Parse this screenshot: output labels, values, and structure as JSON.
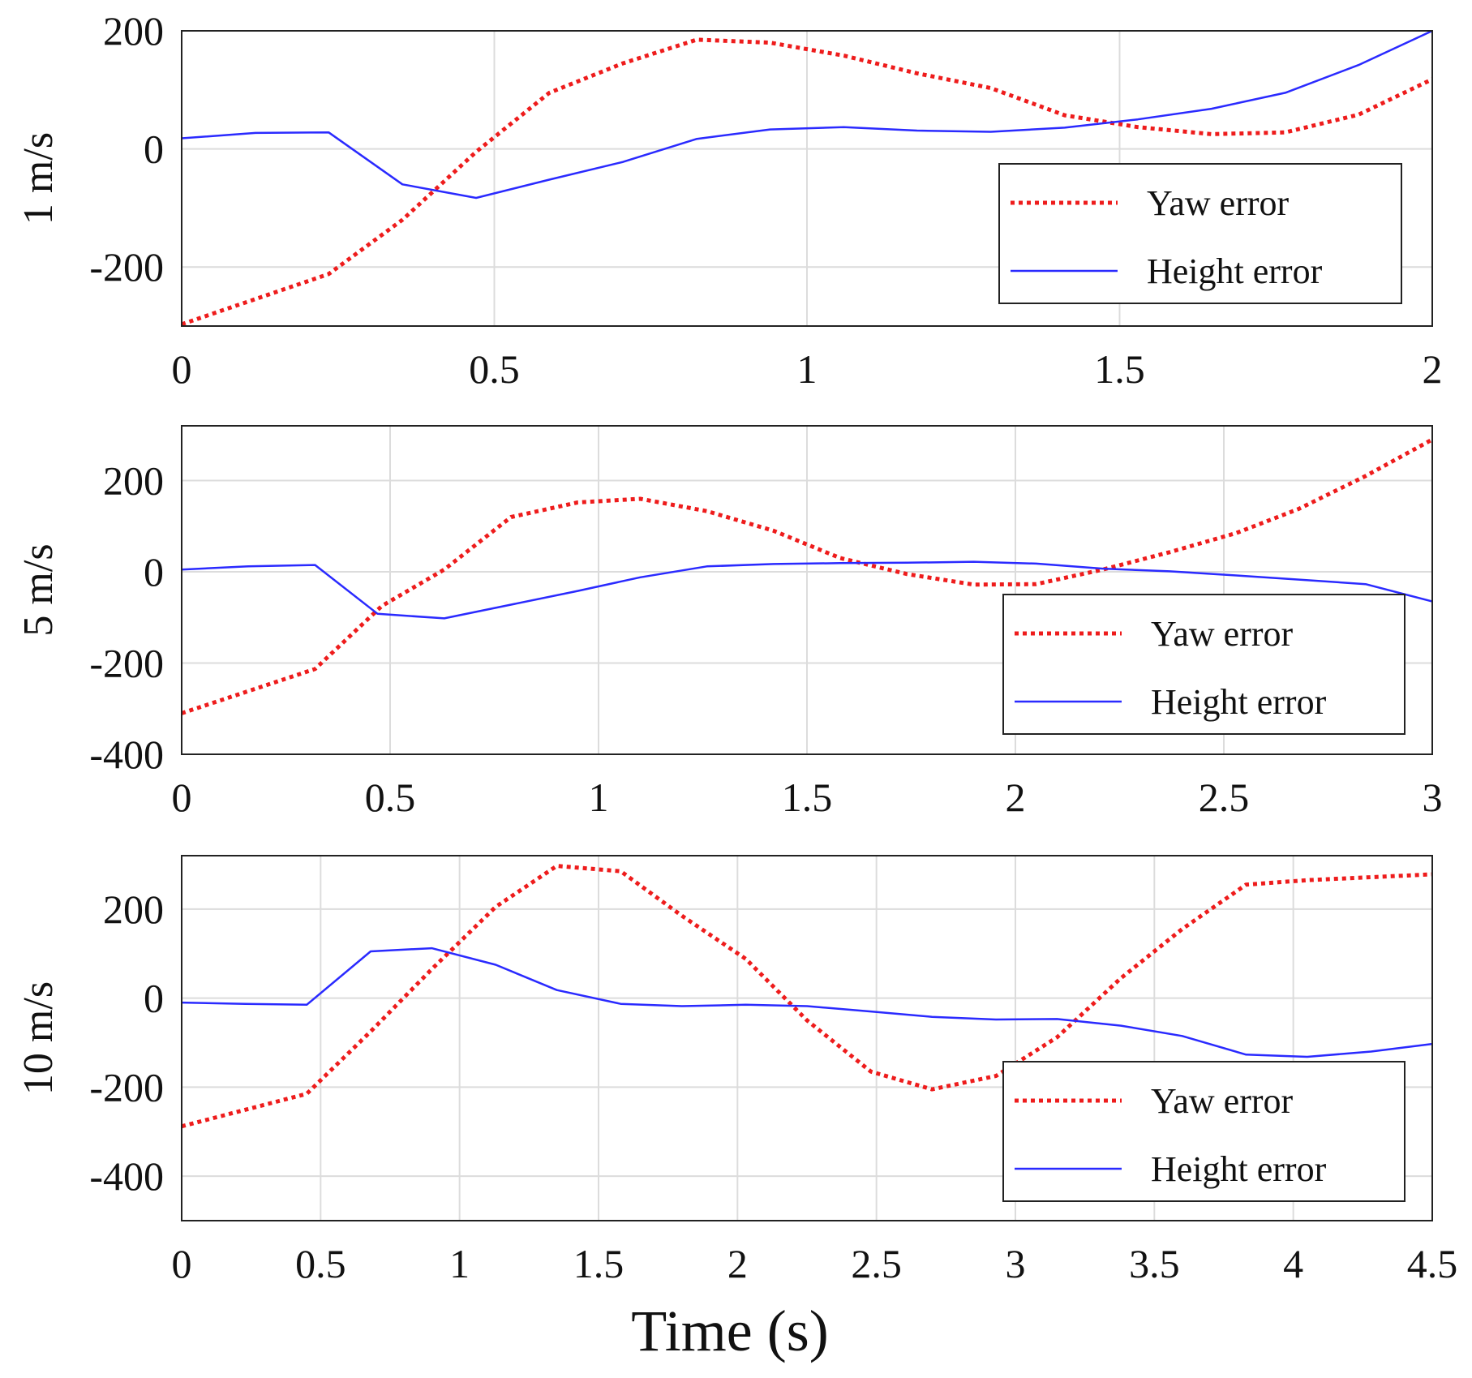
{
  "chart_data": [
    {
      "type": "line",
      "ylabel": "1 m/s",
      "xlabel": "",
      "xlim": [
        0,
        2
      ],
      "ylim": [
        -300,
        200
      ],
      "xticks": [
        0,
        0.5,
        1,
        1.5,
        2
      ],
      "xtick_labels": [
        "0",
        "0.5",
        "1",
        "1.5",
        "2"
      ],
      "yticks": [
        -200,
        0,
        200
      ],
      "ytick_labels": [
        "-200",
        "0",
        "200"
      ],
      "grid": true,
      "legend_position": "lower-right",
      "series": [
        {
          "name": "Yaw error",
          "style": "dotted",
          "color": "#ee1c1c",
          "x": [
            0,
            0.235,
            0.353,
            0.471,
            0.588,
            0.706,
            0.824,
            0.941,
            1.059,
            1.176,
            1.294,
            1.412,
            1.529,
            1.647,
            1.765,
            1.882,
            2.0
          ],
          "y": [
            -297,
            -212,
            -120,
            -5,
            95,
            145,
            185,
            180,
            158,
            128,
            103,
            57,
            37,
            25,
            28,
            58,
            118
          ]
        },
        {
          "name": "Height error",
          "style": "solid",
          "color": "#2a2aff",
          "x": [
            0,
            0.118,
            0.235,
            0.353,
            0.471,
            0.588,
            0.706,
            0.824,
            0.941,
            1.059,
            1.176,
            1.294,
            1.412,
            1.529,
            1.647,
            1.765,
            1.882,
            2.0
          ],
          "y": [
            18,
            27,
            28,
            -60,
            -83,
            -52,
            -22,
            17,
            33,
            37,
            31,
            29,
            36,
            50,
            68,
            95,
            142,
            200
          ]
        }
      ]
    },
    {
      "type": "line",
      "ylabel": "5 m/s",
      "xlabel": "",
      "xlim": [
        0,
        3
      ],
      "ylim": [
        -400,
        320
      ],
      "xticks": [
        0,
        0.5,
        1,
        1.5,
        2,
        2.5,
        3
      ],
      "xtick_labels": [
        "0",
        "0.5",
        "1",
        "1.5",
        "2",
        "2.5",
        "3"
      ],
      "yticks": [
        -400,
        -200,
        0,
        200
      ],
      "ytick_labels": [
        "-400",
        "-200",
        "0",
        "200"
      ],
      "grid": true,
      "legend_position": "lower-right",
      "series": [
        {
          "name": "Yaw error",
          "style": "dotted",
          "color": "#ee1c1c",
          "x": [
            0,
            0.32,
            0.48,
            0.63,
            0.79,
            0.95,
            1.1,
            1.26,
            1.42,
            1.58,
            1.74,
            1.9,
            2.05,
            2.21,
            2.37,
            2.53,
            2.68,
            2.84,
            3.0
          ],
          "y": [
            -310,
            -213,
            -75,
            5,
            120,
            152,
            160,
            133,
            90,
            30,
            -5,
            -28,
            -27,
            5,
            43,
            85,
            138,
            210,
            290
          ]
        },
        {
          "name": "Height error",
          "style": "solid",
          "color": "#2a2aff",
          "x": [
            0,
            0.16,
            0.32,
            0.47,
            0.63,
            0.79,
            0.95,
            1.1,
            1.26,
            1.42,
            1.58,
            1.74,
            1.9,
            2.05,
            2.21,
            2.37,
            2.53,
            2.68,
            2.84,
            3.0
          ],
          "y": [
            5,
            12,
            15,
            -92,
            -102,
            -72,
            -42,
            -12,
            12,
            17,
            19,
            20,
            22,
            18,
            7,
            1,
            -8,
            -17,
            -27,
            -65
          ]
        }
      ]
    },
    {
      "type": "line",
      "ylabel": "10 m/s",
      "xlabel": "Time (s)",
      "xlim": [
        0,
        4.5
      ],
      "ylim": [
        -500,
        320
      ],
      "xticks": [
        0,
        0.5,
        1,
        1.5,
        2,
        2.5,
        3,
        3.5,
        4,
        4.5
      ],
      "xtick_labels": [
        "0",
        "0.5",
        "1",
        "1.5",
        "2",
        "2.5",
        "3",
        "3.5",
        "4",
        "4.5"
      ],
      "yticks": [
        -400,
        -200,
        0,
        200
      ],
      "ytick_labels": [
        "-400",
        "-200",
        "0",
        "200"
      ],
      "grid": true,
      "legend_position": "lower-right",
      "series": [
        {
          "name": "Yaw error",
          "style": "dotted",
          "color": "#ee1c1c",
          "x": [
            0,
            0.45,
            0.68,
            0.9,
            1.13,
            1.35,
            1.58,
            1.8,
            2.03,
            2.25,
            2.48,
            2.7,
            2.93,
            3.15,
            3.38,
            3.6,
            3.83,
            4.05,
            4.5
          ],
          "y": [
            -288,
            -215,
            -75,
            65,
            205,
            297,
            285,
            185,
            88,
            -50,
            -165,
            -205,
            -175,
            -88,
            45,
            155,
            255,
            265,
            278
          ]
        },
        {
          "name": "Height error",
          "style": "solid",
          "color": "#2a2aff",
          "x": [
            0,
            0.23,
            0.45,
            0.68,
            0.9,
            1.13,
            1.35,
            1.58,
            1.8,
            2.03,
            2.25,
            2.48,
            2.7,
            2.93,
            3.15,
            3.38,
            3.6,
            3.83,
            4.05,
            4.28,
            4.5
          ],
          "y": [
            -10,
            -13,
            -15,
            105,
            112,
            75,
            18,
            -13,
            -18,
            -15,
            -18,
            -30,
            -42,
            -48,
            -47,
            -62,
            -85,
            -127,
            -132,
            -120,
            -103
          ]
        }
      ]
    }
  ]
}
